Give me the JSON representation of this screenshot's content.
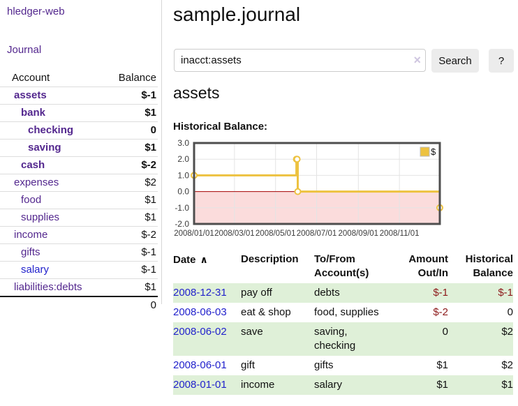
{
  "app": {
    "brand": "hledger-web",
    "nav_journal": "Journal"
  },
  "sidebar": {
    "header": {
      "account": "Account",
      "balance": "Balance"
    },
    "accounts": [
      {
        "name": "assets",
        "level": 1,
        "bold": true,
        "balance": "$-1",
        "balance_style": "neg-strong",
        "link_color": "purple"
      },
      {
        "name": "bank",
        "level": 2,
        "bold": true,
        "balance": "$1",
        "balance_style": "",
        "link_color": "purple"
      },
      {
        "name": "checking",
        "level": 3,
        "bold": true,
        "balance": "0",
        "balance_style": "",
        "link_color": "purple"
      },
      {
        "name": "saving",
        "level": 3,
        "bold": true,
        "balance": "$1",
        "balance_style": "",
        "link_color": "purple"
      },
      {
        "name": "cash",
        "level": 2,
        "bold": true,
        "balance": "$-2",
        "balance_style": "neg-strong",
        "link_color": "purple"
      },
      {
        "name": "expenses",
        "level": 1,
        "bold": false,
        "balance": "$2",
        "balance_style": "",
        "link_color": "purple"
      },
      {
        "name": "food",
        "level": 2,
        "bold": false,
        "balance": "$1",
        "balance_style": "",
        "link_color": "purple"
      },
      {
        "name": "supplies",
        "level": 2,
        "bold": false,
        "balance": "$1",
        "balance_style": "",
        "link_color": "purple"
      },
      {
        "name": "income",
        "level": 1,
        "bold": false,
        "balance": "$-2",
        "balance_style": "neg-soft",
        "link_color": "purple"
      },
      {
        "name": "gifts",
        "level": 2,
        "bold": false,
        "balance": "$-1",
        "balance_style": "neg-soft",
        "link_color": "purple"
      },
      {
        "name": "salary",
        "level": 2,
        "bold": false,
        "balance": "$-1",
        "balance_style": "neg-soft",
        "link_color": "blue"
      },
      {
        "name": "liabilities:debts",
        "level": 1,
        "bold": false,
        "balance": "$1",
        "balance_style": "",
        "link_color": "purple"
      }
    ],
    "total": "0"
  },
  "header": {
    "title": "sample.journal"
  },
  "search": {
    "value": "inacct:assets",
    "clear_icon": "×",
    "search_label": "Search",
    "help_label": "?"
  },
  "main": {
    "account_title": "assets",
    "chart_label": "Historical Balance:"
  },
  "chart_data": {
    "type": "line",
    "title": "Historical Balance",
    "step": true,
    "series": [
      {
        "name": "$",
        "color": "#edc240",
        "points": [
          [
            "2008-01-01",
            1
          ],
          [
            "2008-06-01",
            2
          ],
          [
            "2008-06-02",
            2
          ],
          [
            "2008-06-03",
            0
          ],
          [
            "2008-12-31",
            -1
          ]
        ]
      }
    ],
    "xlim": [
      "2008-01-01",
      "2008-12-31"
    ],
    "ylim": [
      -2,
      3
    ],
    "y_ticks": [
      3.0,
      2.0,
      1.0,
      0.0,
      -1.0,
      -2.0
    ],
    "x_ticks": [
      {
        "date": "2008-01-01",
        "label": "2008/01/01"
      },
      {
        "date": "2008-03-01",
        "label": "2008/03/01"
      },
      {
        "date": "2008-05-01",
        "label": "2008/05/01"
      },
      {
        "date": "2008-07-01",
        "label": "2008/07/01"
      },
      {
        "date": "2008-09-01",
        "label": "2008/09/01"
      },
      {
        "date": "2008-11-01",
        "label": "2008/11/01"
      }
    ],
    "legend": [
      "$"
    ],
    "legend_position": "top-right",
    "grid": true,
    "grid_color": "#e4e4e4",
    "negative_region_color": "#fbdcdc",
    "zero_line_color": "#a40000",
    "border_color": "#4e4e4e"
  },
  "register": {
    "sort_icon": "∧",
    "headers": [
      {
        "lines": [
          "Date"
        ],
        "align": "left",
        "sortable": true
      },
      {
        "lines": [
          "Description"
        ],
        "align": "left",
        "sortable": false
      },
      {
        "lines": [
          "To/From",
          "Account(s)"
        ],
        "align": "left",
        "sortable": false
      },
      {
        "lines": [
          "Amount",
          "Out/In"
        ],
        "align": "right",
        "sortable": false
      },
      {
        "lines": [
          "Historical",
          "Balance"
        ],
        "align": "right",
        "sortable": false
      }
    ],
    "rows": [
      {
        "date": "2008-12-31",
        "description": "pay off",
        "accounts": [
          "debts"
        ],
        "amount": "$-1",
        "amount_neg": true,
        "balance": "$-1",
        "balance_neg": true
      },
      {
        "date": "2008-06-03",
        "description": "eat & shop",
        "accounts": [
          "food, supplies"
        ],
        "amount": "$-2",
        "amount_neg": true,
        "balance": "0",
        "balance_neg": false
      },
      {
        "date": "2008-06-02",
        "description": "save",
        "accounts": [
          "saving,",
          "checking"
        ],
        "amount": "0",
        "amount_neg": false,
        "balance": "$2",
        "balance_neg": false
      },
      {
        "date": "2008-06-01",
        "description": "gift",
        "accounts": [
          "gifts"
        ],
        "amount": "$1",
        "amount_neg": false,
        "balance": "$2",
        "balance_neg": false
      },
      {
        "date": "2008-01-01",
        "description": "income",
        "accounts": [
          "salary"
        ],
        "amount": "$1",
        "amount_neg": false,
        "balance": "$1",
        "balance_neg": false
      }
    ]
  }
}
